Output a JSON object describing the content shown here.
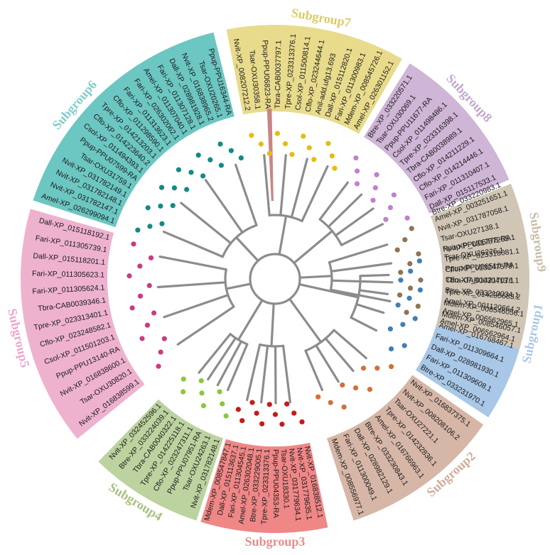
{
  "figure": {
    "highlight_color": "#c98585",
    "branch_color": "#8c8c8c"
  },
  "subgroups": [
    {
      "name": "Subgroup1",
      "color": "#a9c7e6",
      "title_color": "#a9c7e6",
      "dot_color": "#3f7fba",
      "labels": [
        "Tsar-OXU26226.1",
        "Ppup-PPU06510-RA",
        "Tbra-CAB0030413.1",
        "Tpre-XP_014235683.2",
        "Mdem-XP_008546056.1",
        "Mdem-XP_008546057.1",
        "Amel-XP_016768467.1",
        "Fari-XP_011309664.1",
        "Dall-XP_028981930.1",
        "Fari-XP_011309608.1",
        "Btre-XP_033231970.1"
      ]
    },
    {
      "name": "Subgroup2",
      "color": "#d6b6a6",
      "title_color": "#d4aa98",
      "dot_color": "#d2703a",
      "labels": [
        "Nvit-XP_016837375.1",
        "Nvit-XP_008208106.2",
        "Tsar-OXU27221.1",
        "Tpre-XP_014232836.1",
        "Amel-XP_016766963.1",
        "Btre-XP_033230843.1",
        "Dall-XP_028982129.1",
        "Fari-XP_011300049.1",
        "Mdem-XP_008556977.1"
      ]
    },
    {
      "name": "Subgroup3",
      "color": "#ef8787",
      "title_color": "#e88c8c",
      "dot_color": "#c41b1b",
      "labels": [
        "Nvit-XP_016838512.1",
        "Nvit-XP_031779635.1",
        "Nvit-XP_031779634.1",
        "Tsar-OXU18330.1",
        "Ppup-PPU04353-RA",
        "Tpre-XP_023313376.1",
        "Btre-XP_033229005.1",
        "Amel-XP_026302048.1",
        "Fari-XP_011304545.1",
        "Dall-XP_015113637.1",
        "Mdem-XP_008547847.1"
      ]
    },
    {
      "name": "Subgroup4",
      "color": "#bcd3a0",
      "title_color": "#a7c07e",
      "dot_color": "#8cc63f",
      "labels": [
        "Nvit-XP_031782148.1",
        "Tsar-OXU24263.1",
        "Ppup-PPU07951-RA",
        "Cflo-XP_023247311.1",
        "Tpre-XP_014225118.1",
        "Tbra-CAB0040322.1",
        "Btre-XP_033224039.1",
        "Nvit-XP_032452596.1"
      ]
    },
    {
      "name": "Subgroup5",
      "color": "#eeb2cf",
      "title_color": "#eba6cd",
      "dot_color": "#cc3a81",
      "labels": [
        "Nvit-XP_016838599.1",
        "Tsar-OXU30820.1",
        "Nvit-XP_016838600.1",
        "Ppup-PPU13140-RA",
        "Csol-XP_011501203.1",
        "Cflo-XP_023248582.1",
        "Tpre-XP_023313401.1",
        "Tbra-CAB0039346.1",
        "Fari-XP_011305624.1",
        "Fari-XP_011305623.1",
        "Dall-XP_015118201.1",
        "Fari-XP_011305739.1",
        "Dall-XP_015118192.1"
      ]
    },
    {
      "name": "Subgroup6",
      "color": "#6cc6c2",
      "title_color": "#7fcdca",
      "dot_color": "#148a84",
      "labels": [
        "Amel-XP_026299094.1",
        "Nvit-XP_031782147.1",
        "Nvit-XP_031782148.1",
        "Nvit-XP_031782149.1",
        "Tsar-OXU31759.1",
        "Ppup-PPU07599-RA",
        "Csol-XP_011494393.1",
        "Cflo-XP_014223640.2",
        "Tpre-XP_014213203.1",
        "Cflo-XP_011298590.1",
        "Fari-XP_011313623.1",
        "Fari-XP_026302062.1",
        "Amel-XP_011307040.1",
        "Fari-XP_011307128.1",
        "Dall-XP_028981928.1",
        "Nvit-XP_016838965.2",
        "Tsar-OXU20265.1",
        "Ppup-PPU16344-RA"
      ]
    },
    {
      "name": "Subgroup7",
      "color": "#e8db8c",
      "title_color": "#dccb62",
      "dot_color": "#e6bc12",
      "labels": [
        "Nvit-XP_008207212.2",
        "Tsar-OXU30358.1",
        "Ppup-PPU06823-RA",
        "Tbra-CAB0037797.1",
        "Tpre-XP_023313376.1",
        "Csol-XP_011500814.1",
        "Cflo-XP_023244644.1",
        "Anil-add.ufg13.693",
        "Dall-XP_015112820.1",
        "Fari-XP_011300983.1",
        "Mdem-XP_008545726.1",
        "Amel-XP_026301152.1"
      ]
    },
    {
      "name": "Subgroup8",
      "color": "#cfb5d6",
      "title_color": "#c4a6ce",
      "dot_color": "#c27fcf",
      "labels": [
        "Btre-XP_033220571.1",
        "Tsar-OXU30069.1",
        "Ppup-PPU11677-RA",
        "Csol-XP_011498486.1",
        "Tpre-XP_023316398.1",
        "Tbra-CAB0038989.1",
        "Cflo-XP_014211229.1",
        "Cflo-XP_014214446.1",
        "Fari-XP_011310407.1",
        "Dall-XP_015117533.1"
      ]
    },
    {
      "name": "Subgroup9",
      "color": "#d1c6b6",
      "title_color": "#c9bda8",
      "dot_color": "#8e7550",
      "labels": [
        "Amel-XP_003251651.1",
        "Nvit-XP_031787058.1",
        "Tsar-OXU27138.1",
        "Ppup-PPU06778-RA",
        "Tpre-XP_023318081.1",
        "Cflo-XP_023247579.1",
        "Cflo-XP_014217076.1",
        "Btre-XP_033210034.1",
        "Amel-XP_001120664.2",
        "Amel-XP_006562965.1",
        "Amel-XP_006562964.1"
      ]
    }
  ],
  "outside_labels": [
    "Btre-XP_033220983.1",
    "Nvit-XP_031787265.1"
  ]
}
